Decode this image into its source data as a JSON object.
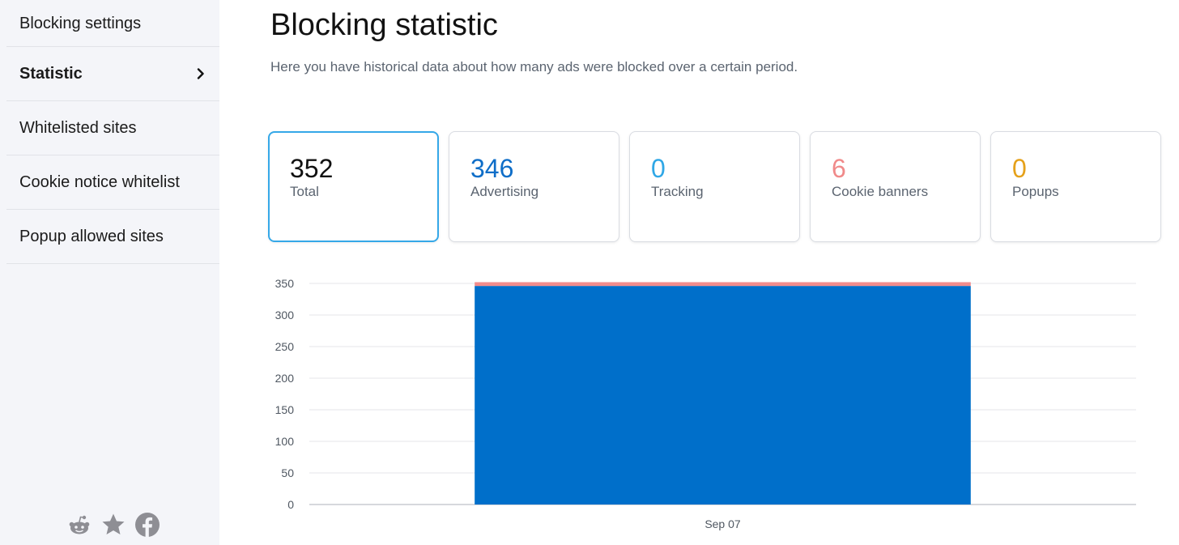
{
  "sidebar": {
    "items": [
      {
        "label": "Blocking settings"
      },
      {
        "label": "Statistic"
      },
      {
        "label": "Whitelisted sites"
      },
      {
        "label": "Cookie notice whitelist"
      },
      {
        "label": "Popup allowed sites"
      }
    ],
    "social_icons": [
      "reddit-icon",
      "star-icon",
      "facebook-icon"
    ]
  },
  "main": {
    "title": "Blocking statistic",
    "subtitle": "Here you have historical data about how many ads were blocked over a certain period."
  },
  "cards": [
    {
      "value": "352",
      "label": "Total",
      "color": "#111111"
    },
    {
      "value": "346",
      "label": "Advertising",
      "color": "#0f6ec8"
    },
    {
      "value": "0",
      "label": "Tracking",
      "color": "#2fa7e6"
    },
    {
      "value": "6",
      "label": "Cookie banners",
      "color": "#f08a8a"
    },
    {
      "value": "0",
      "label": "Popups",
      "color": "#e5a11a"
    }
  ],
  "chart_data": {
    "type": "bar",
    "stacked": true,
    "categories": [
      "Sep 07"
    ],
    "series": [
      {
        "values": [
          346
        ],
        "color": "#006fca"
      },
      {
        "values": [
          6
        ],
        "color": "#f28c8c"
      }
    ],
    "yticks": [
      0,
      50,
      100,
      150,
      200,
      250,
      300,
      350
    ],
    "ylim": [
      0,
      350
    ],
    "grid": true
  }
}
